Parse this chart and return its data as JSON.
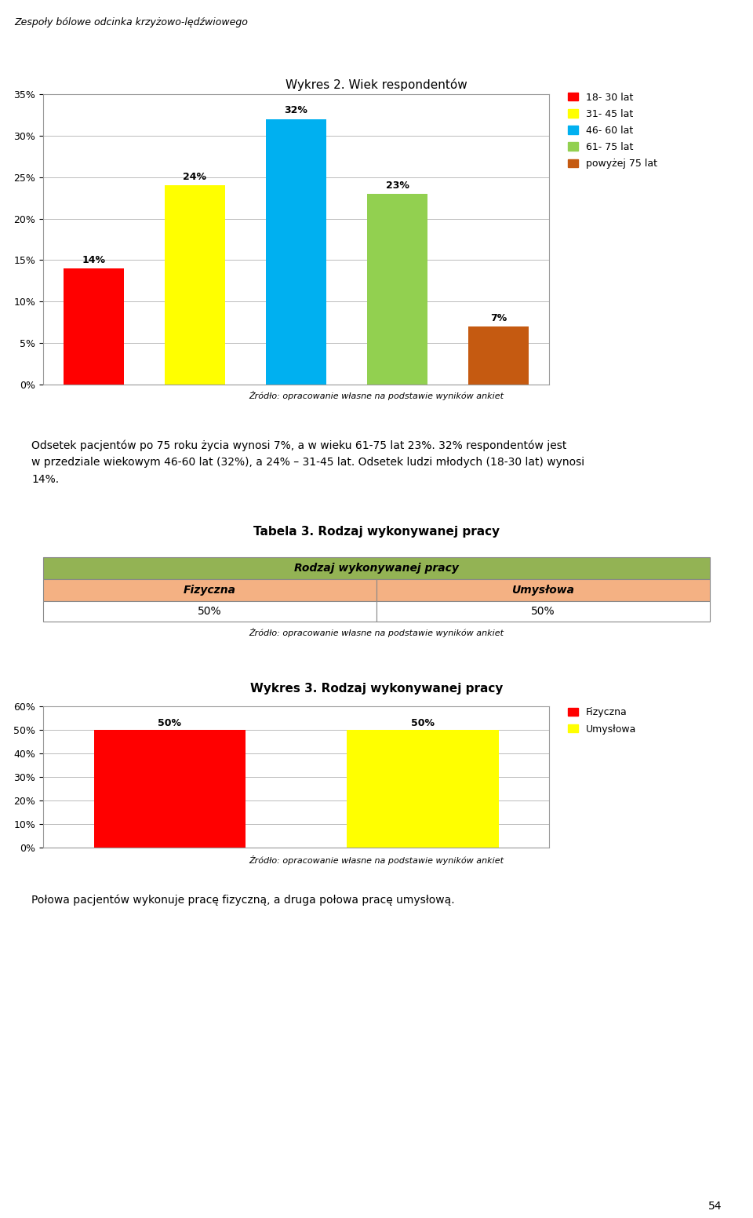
{
  "page_title": "Zespoły bólowe odcinka krzyżowo-lędźwiowego",
  "chart1_title": "Wykres 2. Wiek respondentów",
  "chart1_categories": [
    "18- 30 lat",
    "31- 45 lat",
    "46- 60 lat",
    "61- 75 lat",
    "powyżej 75 lat"
  ],
  "chart1_values": [
    14,
    24,
    32,
    23,
    7
  ],
  "chart1_colors": [
    "#FF0000",
    "#FFFF00",
    "#00B0F0",
    "#92D050",
    "#C55A11"
  ],
  "chart1_ylim": [
    0,
    35
  ],
  "chart1_yticks": [
    0,
    5,
    10,
    15,
    20,
    25,
    30,
    35
  ],
  "chart1_ytick_labels": [
    "0%",
    "5%",
    "10%",
    "15%",
    "20%",
    "25%",
    "30%",
    "35%"
  ],
  "chart1_source": "Źródło: opracowanie własne na podstawie wyników ankiet",
  "paragraph1_line1": "Odsetek pacjentów po 75 roku życia wynosi 7%, a w wieku 61-75 lat 23%. 32% respondentów jest",
  "paragraph1_line2": "w przedziale wiekowym 46-60 lat (32%), a 24% – 31-45 lat. Odsetek ludzi młodych (18-30 lat) wynosi",
  "paragraph1_line3": "14%.",
  "table_title": "Tabela 3. Rodzaj wykonywanej pracy",
  "table_header": "Rodzaj wykonywanej pracy",
  "table_col1": "Fizyczna",
  "table_col2": "Umysłowa",
  "table_val1": "50%",
  "table_val2": "50%",
  "table_source": "Źródło: opracowanie własne na podstawie wyników ankiet",
  "table_header_bg": "#93B354",
  "table_subheader_bg": "#F4B183",
  "chart2_title": "Wykres 3. Rodzaj wykonywanej pracy",
  "chart2_values": [
    50,
    50
  ],
  "chart2_colors": [
    "#FF0000",
    "#FFFF00"
  ],
  "chart2_ylim": [
    0,
    60
  ],
  "chart2_yticks": [
    0,
    10,
    20,
    30,
    40,
    50,
    60
  ],
  "chart2_ytick_labels": [
    "0%",
    "10%",
    "20%",
    "30%",
    "40%",
    "50%",
    "60%"
  ],
  "chart2_source": "Źródło: opracowanie własne na podstawie wyników ankiet",
  "paragraph2": "Połowa pacjentów wykonuje pracę fizyczną, a druga połowa pracę umysłową.",
  "page_number": "54",
  "legend1_colors": [
    "#FF0000",
    "#FFFF00",
    "#00B0F0",
    "#92D050",
    "#C55A11"
  ],
  "legend1_labels": [
    "18- 30 lat",
    "31- 45 lat",
    "46- 60 lat",
    "61- 75 lat",
    "powyżej 75 lat"
  ],
  "legend2_colors": [
    "#FF0000",
    "#FFFF00"
  ],
  "legend2_labels": [
    "Fizyczna",
    "Umysłowa"
  ]
}
